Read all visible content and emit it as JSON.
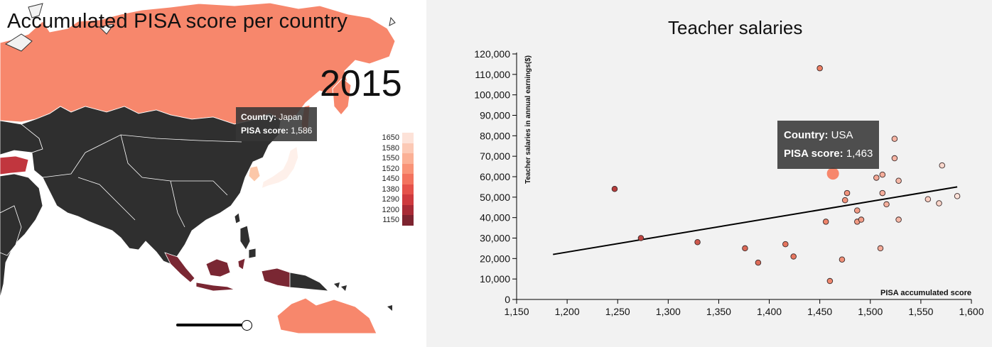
{
  "map": {
    "title": "Accumulated PISA score per country",
    "year": "2015",
    "tooltip": {
      "country_label": "Country:",
      "country": "Japan",
      "score_label": "PISA score:",
      "score": "1,586"
    },
    "legend": [
      {
        "label": "1650",
        "color": "#fde2d8"
      },
      {
        "label": "1580",
        "color": "#fcc9b5"
      },
      {
        "label": "1550",
        "color": "#fbb095"
      },
      {
        "label": "1520",
        "color": "#f99377"
      },
      {
        "label": "1450",
        "color": "#f3735e"
      },
      {
        "label": "1380",
        "color": "#e5524a"
      },
      {
        "label": "1290",
        "color": "#ce3a3e"
      },
      {
        "label": "1200",
        "color": "#a82b36"
      },
      {
        "label": "1150",
        "color": "#7d2430"
      }
    ],
    "slider": {
      "value": 1.0
    },
    "colors": {
      "nodata": "#2f2f2f",
      "russia": "#f7876c",
      "japan": "#fef0ea",
      "korea": "#fcc7a8",
      "indonesia": "#7a2733",
      "turkey": "#c1363e",
      "australia": "#f7876c"
    }
  },
  "scatter": {
    "title": "Teacher salaries",
    "tooltip": {
      "country_label": "Country:",
      "country": "USA",
      "score_label": "PISA score:",
      "score": "1,463"
    }
  },
  "chart_data": {
    "type": "scatter",
    "title": "Teacher salaries",
    "xlabel": "PISA accumulated score",
    "ylabel": "Teacher salaries in annual earnings($)",
    "xlim": [
      1150,
      1600
    ],
    "ylim": [
      0,
      120000
    ],
    "xticks": [
      "1,150",
      "1,200",
      "1,250",
      "1,300",
      "1,350",
      "1,400",
      "1,450",
      "1,500",
      "1,550",
      "1,600"
    ],
    "yticks": [
      "0",
      "10,000",
      "20,000",
      "30,000",
      "40,000",
      "50,000",
      "60,000",
      "70,000",
      "80,000",
      "90,000",
      "100,000",
      "110,000",
      "120,000"
    ],
    "grid": false,
    "points": [
      {
        "x": 1247,
        "y": 54000
      },
      {
        "x": 1273,
        "y": 30000
      },
      {
        "x": 1329,
        "y": 28000
      },
      {
        "x": 1376,
        "y": 25000
      },
      {
        "x": 1389,
        "y": 18000
      },
      {
        "x": 1416,
        "y": 27000
      },
      {
        "x": 1424,
        "y": 21000
      },
      {
        "x": 1450,
        "y": 113000
      },
      {
        "x": 1456,
        "y": 38000
      },
      {
        "x": 1460,
        "y": 9000
      },
      {
        "x": 1463,
        "y": 61500,
        "highlight": true
      },
      {
        "x": 1472,
        "y": 19500
      },
      {
        "x": 1475,
        "y": 48500
      },
      {
        "x": 1477,
        "y": 52000
      },
      {
        "x": 1487,
        "y": 43500
      },
      {
        "x": 1487,
        "y": 38000
      },
      {
        "x": 1491,
        "y": 39000
      },
      {
        "x": 1506,
        "y": 59500
      },
      {
        "x": 1510,
        "y": 25000
      },
      {
        "x": 1512,
        "y": 61000
      },
      {
        "x": 1512,
        "y": 52000
      },
      {
        "x": 1516,
        "y": 46500
      },
      {
        "x": 1524,
        "y": 78500
      },
      {
        "x": 1524,
        "y": 69000
      },
      {
        "x": 1528,
        "y": 58000
      },
      {
        "x": 1528,
        "y": 39000
      },
      {
        "x": 1557,
        "y": 49000
      },
      {
        "x": 1568,
        "y": 47000
      },
      {
        "x": 1571,
        "y": 65500
      },
      {
        "x": 1586,
        "y": 50500
      }
    ],
    "trendline": {
      "x": [
        1186,
        1586
      ],
      "y": [
        22000,
        55000
      ]
    },
    "point_colors": {
      "min": "#b63b3b",
      "mid": "#ee8065",
      "max": "#fde5dc",
      "highlight": "#f7876c"
    }
  }
}
